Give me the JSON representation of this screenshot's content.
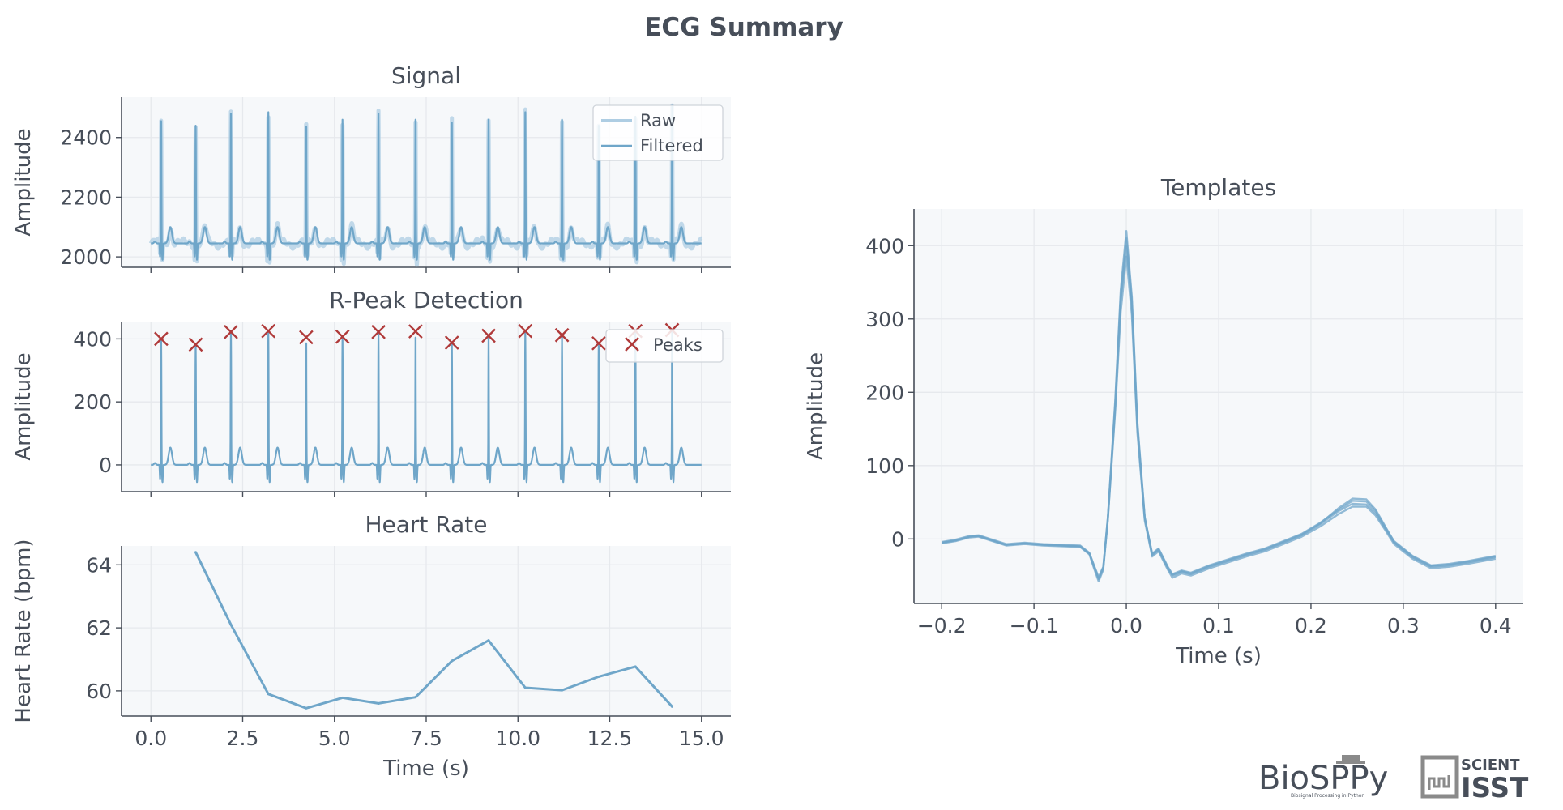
{
  "title": "ECG Summary",
  "colors": {
    "accent": "#6fa6c9",
    "raw": "#aecde3",
    "peaks": "#b03a3a",
    "text": "#474e59",
    "panel_bg": "#f6f8fa",
    "grid": "#e6e9ed"
  },
  "logos": {
    "biosppy": "BioSPPy",
    "biosppy_sub": "Biosignal Processing in Python",
    "scientisst_top": "SCIENT",
    "scientisst_bottom": "ISST"
  },
  "chart_data": [
    {
      "id": "signal",
      "type": "line",
      "title": "Signal",
      "xlabel": "",
      "ylabel": "Amplitude",
      "xlim": [
        -0.8,
        15.8
      ],
      "ylim": [
        1965,
        2535
      ],
      "xticks": [
        0,
        2.5,
        5,
        7.5,
        10,
        12.5,
        15
      ],
      "yticks": [
        2000,
        2200,
        2400
      ],
      "ytick_labels": [
        "2000",
        "2200",
        "2400"
      ],
      "show_xtick_labels": false,
      "legend": {
        "placement": "top-right",
        "entries": [
          "Raw",
          "Filtered"
        ]
      },
      "baseline": 2045,
      "beats": [
        0.28,
        1.22,
        2.18,
        3.2,
        4.23,
        5.22,
        6.2,
        7.21,
        8.2,
        9.2,
        10.2,
        11.2,
        12.2,
        13.2,
        14.2
      ],
      "r_peaks": [
        2455,
        2440,
        2480,
        2485,
        2455,
        2460,
        2480,
        2480,
        2450,
        2460,
        2485,
        2460,
        2440,
        2470,
        2510
      ]
    },
    {
      "id": "rpeak",
      "type": "line",
      "title": "R-Peak Detection",
      "xlabel": "",
      "ylabel": "Amplitude",
      "xlim": [
        -0.8,
        15.8
      ],
      "ylim": [
        -85,
        455
      ],
      "xticks": [
        0,
        2.5,
        5,
        7.5,
        10,
        12.5,
        15
      ],
      "yticks": [
        0,
        200,
        400
      ],
      "ytick_labels": [
        "0",
        "200",
        "400"
      ],
      "show_xtick_labels": false,
      "legend": {
        "placement": "top-right",
        "entries": [
          "Peaks"
        ]
      },
      "peaks_x": [
        0.28,
        1.22,
        2.18,
        3.2,
        4.23,
        5.22,
        6.2,
        7.21,
        8.2,
        9.2,
        10.2,
        11.2,
        12.2,
        13.2,
        14.2
      ],
      "peaks_y": [
        400,
        382,
        422,
        425,
        405,
        407,
        422,
        424,
        388,
        410,
        425,
        412,
        386,
        425,
        428
      ]
    },
    {
      "id": "heart-rate",
      "type": "line",
      "title": "Heart Rate",
      "xlabel": "Time (s)",
      "ylabel": "Heart Rate (bpm)",
      "xlim": [
        -0.8,
        15.8
      ],
      "ylim": [
        59.2,
        64.6
      ],
      "xticks": [
        0,
        2.5,
        5,
        7.5,
        10,
        12.5,
        15
      ],
      "xtick_labels": [
        "0.0",
        "2.5",
        "5.0",
        "7.5",
        "10.0",
        "12.5",
        "15.0"
      ],
      "yticks": [
        60,
        62,
        64
      ],
      "ytick_labels": [
        "60",
        "62",
        "64"
      ],
      "x": [
        1.22,
        2.18,
        3.2,
        4.23,
        5.22,
        6.2,
        7.21,
        8.2,
        9.2,
        10.2,
        11.2,
        12.2,
        13.2,
        14.2
      ],
      "y": [
        64.4,
        62.1,
        59.9,
        59.45,
        59.78,
        59.6,
        59.8,
        60.95,
        61.6,
        60.1,
        60.02,
        60.45,
        60.77,
        59.5
      ]
    },
    {
      "id": "templates",
      "type": "line",
      "title": "Templates",
      "xlabel": "Time (s)",
      "ylabel": "Amplitude",
      "xlim": [
        -0.23,
        0.43
      ],
      "ylim": [
        -88,
        450
      ],
      "xticks": [
        -0.2,
        -0.1,
        0,
        0.1,
        0.2,
        0.3,
        0.4
      ],
      "xtick_labels": [
        "−0.2",
        "−0.1",
        "0.0",
        "0.1",
        "0.2",
        "0.3",
        "0.4"
      ],
      "yticks": [
        0,
        100,
        200,
        300,
        400
      ],
      "ytick_labels": [
        "0",
        "100",
        "200",
        "300",
        "400"
      ],
      "x": [
        -0.2,
        -0.185,
        -0.17,
        -0.16,
        -0.15,
        -0.13,
        -0.11,
        -0.09,
        -0.07,
        -0.05,
        -0.04,
        -0.035,
        -0.03,
        -0.025,
        -0.02,
        -0.012,
        -0.006,
        0,
        0.006,
        0.012,
        0.02,
        0.028,
        0.035,
        0.045,
        0.05,
        0.06,
        0.07,
        0.09,
        0.11,
        0.13,
        0.15,
        0.17,
        0.19,
        0.21,
        0.23,
        0.245,
        0.26,
        0.27,
        0.28,
        0.29,
        0.31,
        0.33,
        0.35,
        0.37,
        0.4
      ],
      "series": [
        {
          "offset": 0,
          "y": [
            -5,
            -2,
            3,
            4,
            0,
            -8,
            -6,
            -8,
            -9,
            -10,
            -20,
            -38,
            -55,
            -40,
            30,
            190,
            340,
            420,
            330,
            160,
            30,
            -22,
            -15,
            -40,
            -50,
            -45,
            -48,
            -38,
            -30,
            -22,
            -15,
            -5,
            5,
            20,
            38,
            48,
            47,
            35,
            15,
            -5,
            -25,
            -38,
            -36,
            -32,
            -25
          ]
        },
        {
          "offset": 4,
          "y": [
            -4,
            -1,
            4,
            5,
            1,
            -7,
            -5,
            -7,
            -8,
            -9,
            -19,
            -36,
            -52,
            -38,
            28,
            180,
            325,
            400,
            318,
            152,
            28,
            -20,
            -13,
            -38,
            -48,
            -43,
            -46,
            -36,
            -28,
            -20,
            -13,
            -3,
            7,
            22,
            40,
            52,
            51,
            38,
            17,
            -3,
            -23,
            -36,
            -34,
            -30,
            -23
          ]
        },
        {
          "offset": -4,
          "y": [
            -6,
            -3,
            2,
            3,
            -1,
            -9,
            -7,
            -9,
            -10,
            -11,
            -21,
            -40,
            -58,
            -42,
            26,
            175,
            310,
            385,
            305,
            145,
            25,
            -24,
            -17,
            -42,
            -53,
            -47,
            -50,
            -40,
            -32,
            -24,
            -17,
            -7,
            3,
            17,
            34,
            44,
            44,
            32,
            13,
            -7,
            -27,
            -40,
            -38,
            -34,
            -27
          ]
        },
        {
          "offset": 2,
          "y": [
            -5,
            -2,
            3,
            4,
            0,
            -8,
            -6,
            -8,
            -9,
            -10,
            -20,
            -37,
            -54,
            -39,
            29,
            185,
            333,
            410,
            325,
            156,
            29,
            -21,
            -14,
            -39,
            -49,
            -44,
            -47,
            -37,
            -29,
            -21,
            -14,
            -4,
            6,
            21,
            42,
            55,
            54,
            40,
            18,
            -4,
            -24,
            -37,
            -35,
            -31,
            -24
          ]
        }
      ]
    }
  ]
}
